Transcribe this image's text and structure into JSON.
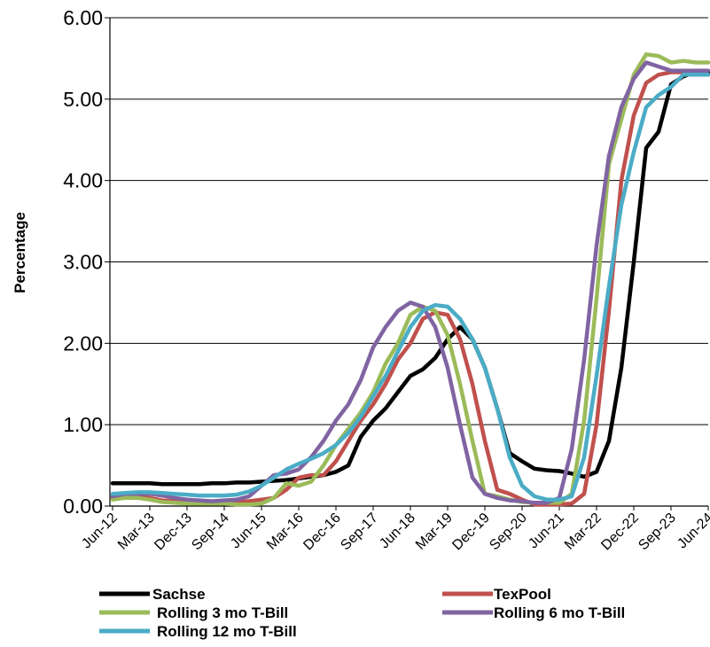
{
  "chart_data": {
    "type": "line",
    "title": "",
    "xlabel": "",
    "ylabel": "Percentage",
    "ylim": [
      0,
      6
    ],
    "y_ticks": [
      "0.00",
      "1.00",
      "2.00",
      "3.00",
      "4.00",
      "5.00",
      "6.00"
    ],
    "grid": "horizontal",
    "legend_position": "bottom",
    "x": [
      "Jun-12",
      "Sep-12",
      "Dec-12",
      "Mar-13",
      "Jun-13",
      "Sep-13",
      "Dec-13",
      "Mar-14",
      "Jun-14",
      "Sep-14",
      "Dec-14",
      "Mar-15",
      "Jun-15",
      "Sep-15",
      "Dec-15",
      "Mar-16",
      "Jun-16",
      "Sep-16",
      "Dec-16",
      "Mar-17",
      "Jun-17",
      "Sep-17",
      "Dec-17",
      "Mar-18",
      "Jun-18",
      "Sep-18",
      "Dec-18",
      "Mar-19",
      "Jun-19",
      "Sep-19",
      "Dec-19",
      "Mar-20",
      "Jun-20",
      "Sep-20",
      "Dec-20",
      "Mar-21",
      "Jun-21",
      "Sep-21",
      "Dec-21",
      "Mar-22",
      "Jun-22",
      "Sep-22",
      "Dec-22",
      "Mar-23",
      "Jun-23",
      "Sep-23",
      "Dec-23",
      "Mar-24",
      "Jun-24"
    ],
    "x_tick_labels": [
      "Jun-12",
      "Mar-13",
      "Dec-13",
      "Sep-14",
      "Jun-15",
      "Mar-16",
      "Dec-16",
      "Sep-17",
      "Jun-18",
      "Mar-19",
      "Dec-19",
      "Sep-20",
      "Jun-21",
      "Mar-22",
      "Dec-22",
      "Sep-23",
      "Jun-24"
    ],
    "series": [
      {
        "name": "Sachse",
        "color": "#000000",
        "values": [
          0.28,
          0.28,
          0.28,
          0.28,
          0.27,
          0.27,
          0.27,
          0.27,
          0.28,
          0.28,
          0.29,
          0.29,
          0.3,
          0.31,
          0.32,
          0.34,
          0.36,
          0.38,
          0.42,
          0.5,
          0.85,
          1.05,
          1.2,
          1.4,
          1.6,
          1.68,
          1.82,
          2.05,
          2.2,
          2.05,
          1.7,
          1.2,
          0.65,
          0.55,
          0.46,
          0.44,
          0.43,
          0.4,
          0.36,
          0.42,
          0.8,
          1.7,
          3.0,
          4.4,
          4.6,
          5.18,
          5.28,
          5.33,
          5.33
        ]
      },
      {
        "name": "TexPool",
        "color": "#c0504d",
        "values": [
          0.1,
          0.1,
          0.1,
          0.1,
          0.07,
          0.06,
          0.05,
          0.04,
          0.04,
          0.04,
          0.05,
          0.06,
          0.08,
          0.1,
          0.2,
          0.35,
          0.38,
          0.38,
          0.55,
          0.8,
          1.05,
          1.25,
          1.5,
          1.8,
          2.0,
          2.3,
          2.38,
          2.35,
          2.05,
          1.5,
          0.8,
          0.2,
          0.15,
          0.08,
          0.02,
          0.02,
          0.02,
          0.03,
          0.15,
          1.0,
          2.4,
          4.0,
          4.8,
          5.2,
          5.3,
          5.33,
          5.33,
          5.33,
          5.3
        ]
      },
      {
        "name": "Rolling 3 mo T-Bill",
        "color": "#9bbb59",
        "values": [
          0.08,
          0.1,
          0.1,
          0.08,
          0.05,
          0.04,
          0.03,
          0.03,
          0.03,
          0.03,
          0.02,
          0.02,
          0.03,
          0.1,
          0.28,
          0.25,
          0.3,
          0.5,
          0.75,
          0.95,
          1.15,
          1.4,
          1.75,
          2.0,
          2.35,
          2.45,
          2.4,
          2.1,
          1.5,
          0.8,
          0.15,
          0.12,
          0.08,
          0.05,
          0.04,
          0.04,
          0.04,
          0.15,
          1.05,
          2.55,
          4.2,
          4.75,
          5.3,
          5.55,
          5.53,
          5.45,
          5.47,
          5.45,
          5.45
        ]
      },
      {
        "name": "Rolling 6 mo T-Bill",
        "color": "#8064a2",
        "values": [
          0.12,
          0.15,
          0.15,
          0.15,
          0.13,
          0.1,
          0.08,
          0.07,
          0.06,
          0.07,
          0.08,
          0.12,
          0.25,
          0.38,
          0.4,
          0.45,
          0.6,
          0.8,
          1.05,
          1.25,
          1.55,
          1.95,
          2.2,
          2.4,
          2.5,
          2.45,
          2.2,
          1.7,
          1.0,
          0.35,
          0.15,
          0.1,
          0.07,
          0.06,
          0.04,
          0.04,
          0.1,
          0.7,
          1.8,
          3.2,
          4.3,
          4.9,
          5.25,
          5.45,
          5.4,
          5.35,
          5.35,
          5.35,
          5.35
        ]
      },
      {
        "name": "Rolling 12 mo T-Bill",
        "color": "#4bacc6",
        "values": [
          0.15,
          0.16,
          0.17,
          0.17,
          0.16,
          0.15,
          0.14,
          0.13,
          0.13,
          0.13,
          0.14,
          0.18,
          0.25,
          0.35,
          0.45,
          0.52,
          0.58,
          0.65,
          0.75,
          0.9,
          1.1,
          1.35,
          1.6,
          1.9,
          2.2,
          2.4,
          2.47,
          2.45,
          2.3,
          2.05,
          1.7,
          1.2,
          0.6,
          0.25,
          0.12,
          0.08,
          0.08,
          0.12,
          0.6,
          1.6,
          2.7,
          3.7,
          4.35,
          4.9,
          5.05,
          5.15,
          5.3,
          5.3,
          5.3
        ]
      }
    ]
  }
}
